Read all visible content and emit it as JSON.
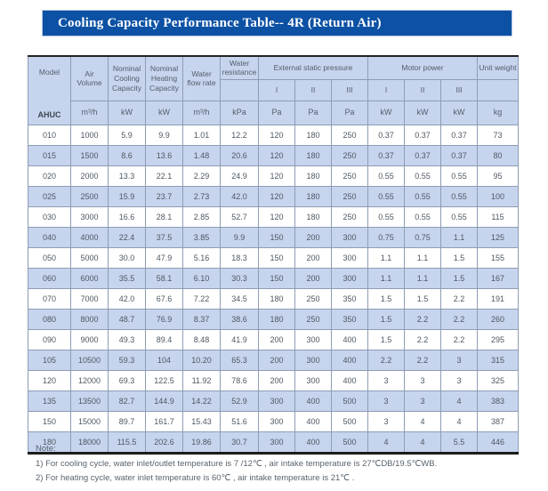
{
  "title_bar": {
    "text": "Cooling Capacity Performance Table-- 4R (Return Air)"
  },
  "colors": {
    "title_bar_bg": "#0c51a4",
    "stripe": "#c6d4ee",
    "inner_border": "#8e9db4",
    "outer_border": "#232323"
  },
  "table": {
    "header": {
      "model_label": "Model",
      "model_series": "AHUC",
      "col_air_volume": "Air Volume",
      "col_nominal_cooling": "Nominal Cooling Capacity",
      "col_nominal_heating": "Nominal Heating Capacity",
      "col_water_flow_rate": "Water flow rate",
      "col_water_resistance": "Water resistance",
      "col_external_static_pressure": "External static pressure",
      "col_motor_power": "Motor power",
      "col_unit_weight": "Unit weight",
      "grade_labels": [
        "I",
        "II",
        "III"
      ],
      "units": [
        "m³/h",
        "kW",
        "kW",
        "m³/h",
        "kPa",
        "Pa",
        "Pa",
        "Pa",
        "kW",
        "kW",
        "kW",
        "kg"
      ]
    },
    "rows": [
      [
        "010",
        "1000",
        "5.9",
        "9.9",
        "1.01",
        "12.2",
        "120",
        "180",
        "250",
        "0.37",
        "0.37",
        "0.37",
        "73"
      ],
      [
        "015",
        "1500",
        "8.6",
        "13.6",
        "1.48",
        "20.6",
        "120",
        "180",
        "250",
        "0.37",
        "0.37",
        "0.37",
        "80"
      ],
      [
        "020",
        "2000",
        "13.3",
        "22.1",
        "2.29",
        "24.9",
        "120",
        "180",
        "250",
        "0.55",
        "0.55",
        "0.55",
        "95"
      ],
      [
        "025",
        "2500",
        "15.9",
        "23.7",
        "2.73",
        "42.0",
        "120",
        "180",
        "250",
        "0.55",
        "0.55",
        "0.55",
        "100"
      ],
      [
        "030",
        "3000",
        "16.6",
        "28.1",
        "2.85",
        "52.7",
        "120",
        "180",
        "250",
        "0.55",
        "0.55",
        "0.55",
        "115"
      ],
      [
        "040",
        "4000",
        "22.4",
        "37.5",
        "3.85",
        "9.9",
        "150",
        "200",
        "300",
        "0.75",
        "0.75",
        "1.1",
        "125"
      ],
      [
        "050",
        "5000",
        "30.0",
        "47.9",
        "5.16",
        "18.3",
        "150",
        "200",
        "300",
        "1.1",
        "1.1",
        "1.5",
        "155"
      ],
      [
        "060",
        "6000",
        "35.5",
        "58.1",
        "6.10",
        "30.3",
        "150",
        "200",
        "300",
        "1.1",
        "1.1",
        "1.5",
        "167"
      ],
      [
        "070",
        "7000",
        "42.0",
        "67.6",
        "7.22",
        "34.5",
        "180",
        "250",
        "350",
        "1.5",
        "1.5",
        "2.2",
        "191"
      ],
      [
        "080",
        "8000",
        "48.7",
        "76.9",
        "8.37",
        "38.6",
        "180",
        "250",
        "350",
        "1.5",
        "2.2",
        "2.2",
        "260"
      ],
      [
        "090",
        "9000",
        "49.3",
        "89.4",
        "8.48",
        "41.9",
        "200",
        "300",
        "400",
        "1.5",
        "2.2",
        "2.2",
        "295"
      ],
      [
        "105",
        "10500",
        "59.3",
        "104",
        "10.20",
        "65.3",
        "200",
        "300",
        "400",
        "2.2",
        "2.2",
        "3",
        "315"
      ],
      [
        "120",
        "12000",
        "69.3",
        "122.5",
        "11.92",
        "78.6",
        "200",
        "300",
        "400",
        "3",
        "3",
        "3",
        "325"
      ],
      [
        "135",
        "13500",
        "82.7",
        "144.9",
        "14.22",
        "52.9",
        "300",
        "400",
        "500",
        "3",
        "3",
        "4",
        "383"
      ],
      [
        "150",
        "15000",
        "89.7",
        "161.7",
        "15.43",
        "51.6",
        "300",
        "400",
        "500",
        "3",
        "4",
        "4",
        "387"
      ],
      [
        "180",
        "18000",
        "115.5",
        "202.6",
        "19.86",
        "30.7",
        "300",
        "400",
        "500",
        "4",
        "4",
        "5.5",
        "446"
      ]
    ]
  },
  "notes": {
    "heading": "Note:",
    "lines": [
      "1) For cooling cycle, water inlet/outlet temperature is 7 /12℃ , air intake temperature is 27℃DB/19.5℃WB.",
      "2) For heating cycle, water inlet temperature is 60℃ , air intake temperature is 21℃ ."
    ]
  }
}
